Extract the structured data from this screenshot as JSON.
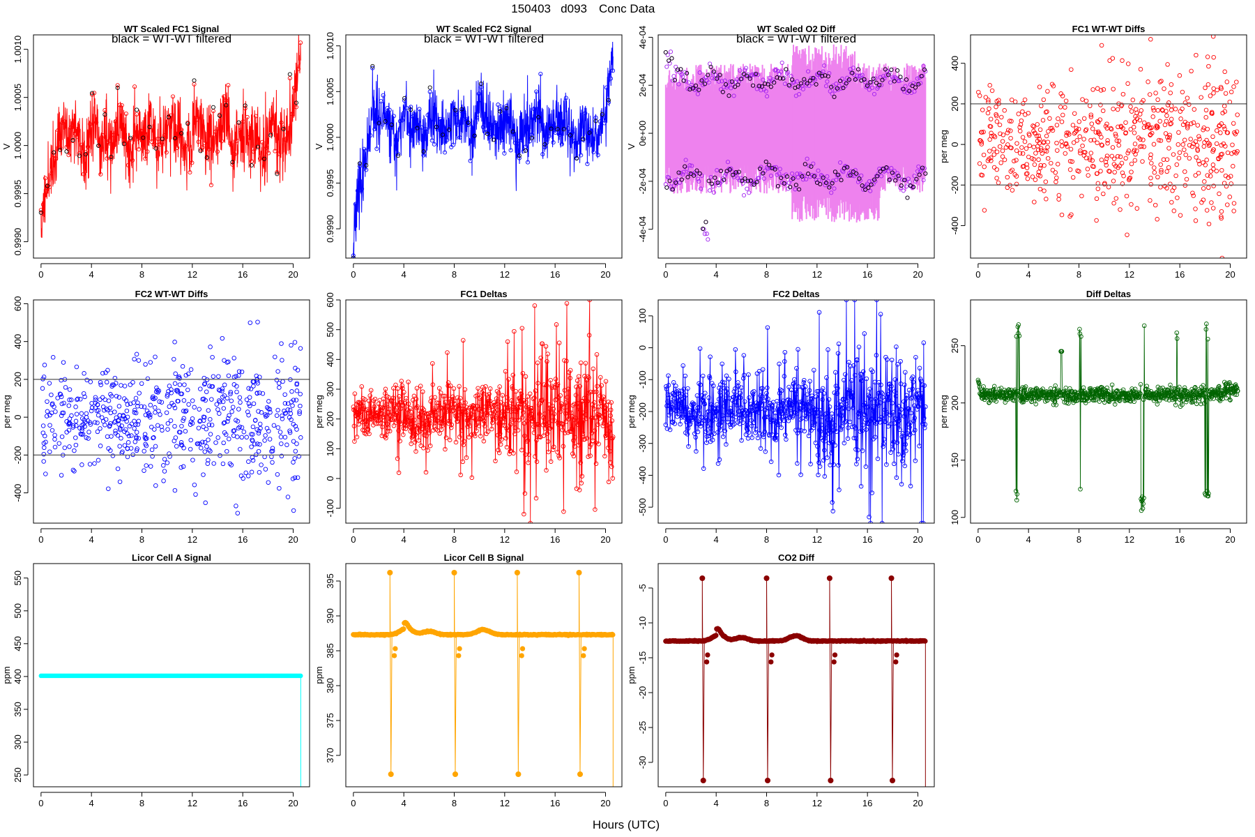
{
  "figure": {
    "title_parts": [
      "150403",
      "d093",
      "Conc Data"
    ],
    "xlabel": "Hours (UTC)"
  },
  "chart_data": [
    {
      "id": "p0",
      "type": "line",
      "title": "WT Scaled FC1 Signal",
      "annotation": "black = WT-WT filtered",
      "xlabel": "",
      "ylabel": "V",
      "color": "#ff0000",
      "xlim": [
        -0.6,
        21.3
      ],
      "ylim": [
        0.99883,
        1.00115
      ],
      "xticks": [
        0,
        4,
        8,
        12,
        16,
        20
      ],
      "yticks": [
        0.999,
        0.9995,
        1.0,
        1.0005,
        1.001
      ],
      "ytick_labels": [
        "0.9990",
        "0.9995",
        "1.0000",
        "1.0005",
        "1.0010"
      ],
      "ytick_rotate": true,
      "kind": "signal",
      "params": {
        "seed": 11,
        "n": 1100,
        "start": 0.9991,
        "settle": 1.0001,
        "amp": 0.00018,
        "noise": 0.0002,
        "drift": 0.00014,
        "black": true
      }
    },
    {
      "id": "p1",
      "type": "line",
      "title": "WT Scaled FC2 Signal",
      "annotation": "black = WT-WT filtered",
      "xlabel": "",
      "ylabel": "V",
      "color": "#0000ff",
      "xlim": [
        -0.6,
        21.3
      ],
      "ylim": [
        0.99868,
        1.00112
      ],
      "xticks": [
        0,
        4,
        8,
        12,
        16,
        20
      ],
      "yticks": [
        0.999,
        0.9995,
        1.0,
        1.0005,
        1.001
      ],
      "ytick_labels": [
        "0.9990",
        "0.9995",
        "1.0000",
        "1.0005",
        "1.0010"
      ],
      "ytick_rotate": true,
      "kind": "signal",
      "params": {
        "seed": 23,
        "n": 1100,
        "start": 0.9989,
        "settle": 1.0001,
        "amp": 0.00016,
        "noise": 0.00019,
        "drift": 0.00012,
        "black": true
      }
    },
    {
      "id": "p2",
      "type": "scatter",
      "title": "WT Scaled O2 Diff",
      "annotation": "black = WT-WT filtered",
      "xlabel": "",
      "ylabel": "V",
      "color": "#ee82ee",
      "xlim": [
        -0.6,
        21.3
      ],
      "ylim": [
        -0.00052,
        0.00041
      ],
      "xticks": [
        0,
        4,
        8,
        12,
        16,
        20
      ],
      "yticks": [
        -0.0004,
        -0.0002,
        0,
        0.0002,
        0.0004
      ],
      "ytick_labels": [
        "-4e-04",
        "-2e-04",
        "0e+00",
        "2e-04",
        "4e-04"
      ],
      "ytick_rotate": true,
      "kind": "o2",
      "params": {
        "seed": 37,
        "upper": 0.00022,
        "lower": -0.00018
      }
    },
    {
      "id": "p3",
      "type": "scatter",
      "title": "FC1 WT-WT Diffs",
      "xlabel": "",
      "ylabel": "per meg",
      "color": "#ff0000",
      "xlim": [
        -0.6,
        21.3
      ],
      "ylim": [
        -560,
        540
      ],
      "xticks": [
        0,
        4,
        8,
        12,
        16,
        20
      ],
      "yticks": [
        -400,
        -200,
        0,
        200,
        400
      ],
      "ytick_labels": [
        "-400",
        "-200",
        "0",
        "200",
        "400"
      ],
      "ytick_rotate": true,
      "hlines": [
        200,
        -200
      ],
      "kind": "scatter",
      "params": {
        "seed": 41,
        "n": 620,
        "sd": 150
      }
    },
    {
      "id": "p4",
      "type": "scatter",
      "title": "FC2 WT-WT Diffs",
      "xlabel": "",
      "ylabel": "per meg",
      "color": "#0000ff",
      "xlim": [
        -0.6,
        21.3
      ],
      "ylim": [
        -560,
        620
      ],
      "xticks": [
        0,
        4,
        8,
        12,
        16,
        20
      ],
      "yticks": [
        -400,
        -200,
        0,
        200,
        400,
        600
      ],
      "ytick_labels": [
        "-400",
        "-200",
        "0",
        "200",
        "400",
        "600"
      ],
      "ytick_rotate": true,
      "hlines": [
        200,
        -200
      ],
      "kind": "scatter",
      "params": {
        "seed": 53,
        "n": 620,
        "sd": 150
      }
    },
    {
      "id": "p5",
      "type": "line",
      "title": "FC1 Deltas",
      "xlabel": "",
      "ylabel": "per meg",
      "color": "#ff0000",
      "xlim": [
        -0.6,
        21.3
      ],
      "ylim": [
        -150,
        600
      ],
      "xticks": [
        0,
        4,
        8,
        12,
        16,
        20
      ],
      "yticks": [
        -100,
        0,
        100,
        200,
        300,
        400,
        500,
        600
      ],
      "ytick_labels": [
        "-100",
        "0",
        "100",
        "200",
        "300",
        "400",
        "500",
        "600"
      ],
      "ytick_rotate": true,
      "kind": "deltas",
      "params": {
        "seed": 61,
        "n": 720,
        "mean": 215,
        "sd": 55,
        "sd_late": 125
      }
    },
    {
      "id": "p6",
      "type": "line",
      "title": "FC2 Deltas",
      "xlabel": "",
      "ylabel": "per meg",
      "color": "#0000ff",
      "xlim": [
        -0.6,
        21.3
      ],
      "ylim": [
        -550,
        150
      ],
      "xticks": [
        0,
        4,
        8,
        12,
        16,
        20
      ],
      "yticks": [
        -500,
        -400,
        -300,
        -200,
        -100,
        0,
        100
      ],
      "ytick_labels": [
        "-500",
        "-400",
        "-300",
        "-200",
        "-100",
        "0",
        "100"
      ],
      "ytick_rotate": true,
      "kind": "deltas",
      "params": {
        "seed": 67,
        "n": 720,
        "mean": -200,
        "sd": 55,
        "sd_late": 125
      }
    },
    {
      "id": "p7",
      "type": "line",
      "title": "Diff Deltas",
      "xlabel": "",
      "ylabel": "per meg",
      "color": "#006400",
      "xlim": [
        -0.6,
        21.3
      ],
      "ylim": [
        95,
        290
      ],
      "xticks": [
        0,
        4,
        8,
        12,
        16,
        20
      ],
      "yticks": [
        100,
        150,
        200,
        250
      ],
      "ytick_labels": [
        "100",
        "150",
        "200",
        "250"
      ],
      "ytick_rotate": true,
      "kind": "diffdeltas",
      "params": {
        "seed": 71,
        "n": 720,
        "mean": 207,
        "sd": 3.2
      }
    },
    {
      "id": "p8",
      "type": "line",
      "title": "Licor Cell A Signal",
      "xlabel": "",
      "ylabel": "ppm",
      "color": "#00ffff",
      "xlim": [
        -0.6,
        21.3
      ],
      "ylim": [
        232,
        572
      ],
      "xticks": [
        0,
        4,
        8,
        12,
        16,
        20
      ],
      "yticks": [
        250,
        300,
        350,
        400,
        450,
        500,
        550
      ],
      "ytick_labels": [
        "250",
        "300",
        "350",
        "400",
        "450",
        "500",
        "550"
      ],
      "ytick_rotate": true,
      "kind": "licorA",
      "params": {
        "level": 401,
        "end": 20.6
      }
    },
    {
      "id": "p9",
      "type": "line",
      "title": "Licor Cell B Signal",
      "xlabel": "",
      "ylabel": "ppm",
      "color": "#ffa500",
      "xlim": [
        -0.6,
        21.3
      ],
      "ylim": [
        365.5,
        397.5
      ],
      "xticks": [
        0,
        4,
        8,
        12,
        16,
        20
      ],
      "yticks": [
        370,
        375,
        380,
        385,
        390,
        395
      ],
      "ytick_labels": [
        "370",
        "375",
        "380",
        "385",
        "390",
        "395"
      ],
      "ytick_rotate": true,
      "kind": "licor",
      "params": {
        "seed": 83,
        "base": 387.3,
        "high": 396.2,
        "low": 367.3,
        "spikes": [
          2.9,
          8.0,
          13.0,
          17.9
        ],
        "bumps": [
          [
            4.2,
            1.6
          ],
          [
            10.3,
            1.4
          ],
          [
            6.0,
            0.9
          ]
        ]
      }
    },
    {
      "id": "p10",
      "type": "line",
      "title": "CO2 Diff",
      "xlabel": "",
      "ylabel": "ppm",
      "color": "#8b0000",
      "xlim": [
        -0.6,
        21.3
      ],
      "ylim": [
        -33.5,
        -1.5
      ],
      "xticks": [
        0,
        4,
        8,
        12,
        16,
        20
      ],
      "yticks": [
        -30,
        -25,
        -20,
        -15,
        -10,
        -5
      ],
      "ytick_labels": [
        "-30",
        "-25",
        "-20",
        "-15",
        "-10",
        "-5"
      ],
      "ytick_rotate": true,
      "kind": "licor",
      "params": {
        "seed": 89,
        "base": -12.6,
        "high": -3.6,
        "low": -32.6,
        "spikes": [
          2.9,
          8.0,
          13.0,
          17.9
        ],
        "bumps": [
          [
            4.2,
            1.6
          ],
          [
            10.3,
            1.4
          ],
          [
            6.0,
            0.9
          ]
        ]
      }
    }
  ]
}
